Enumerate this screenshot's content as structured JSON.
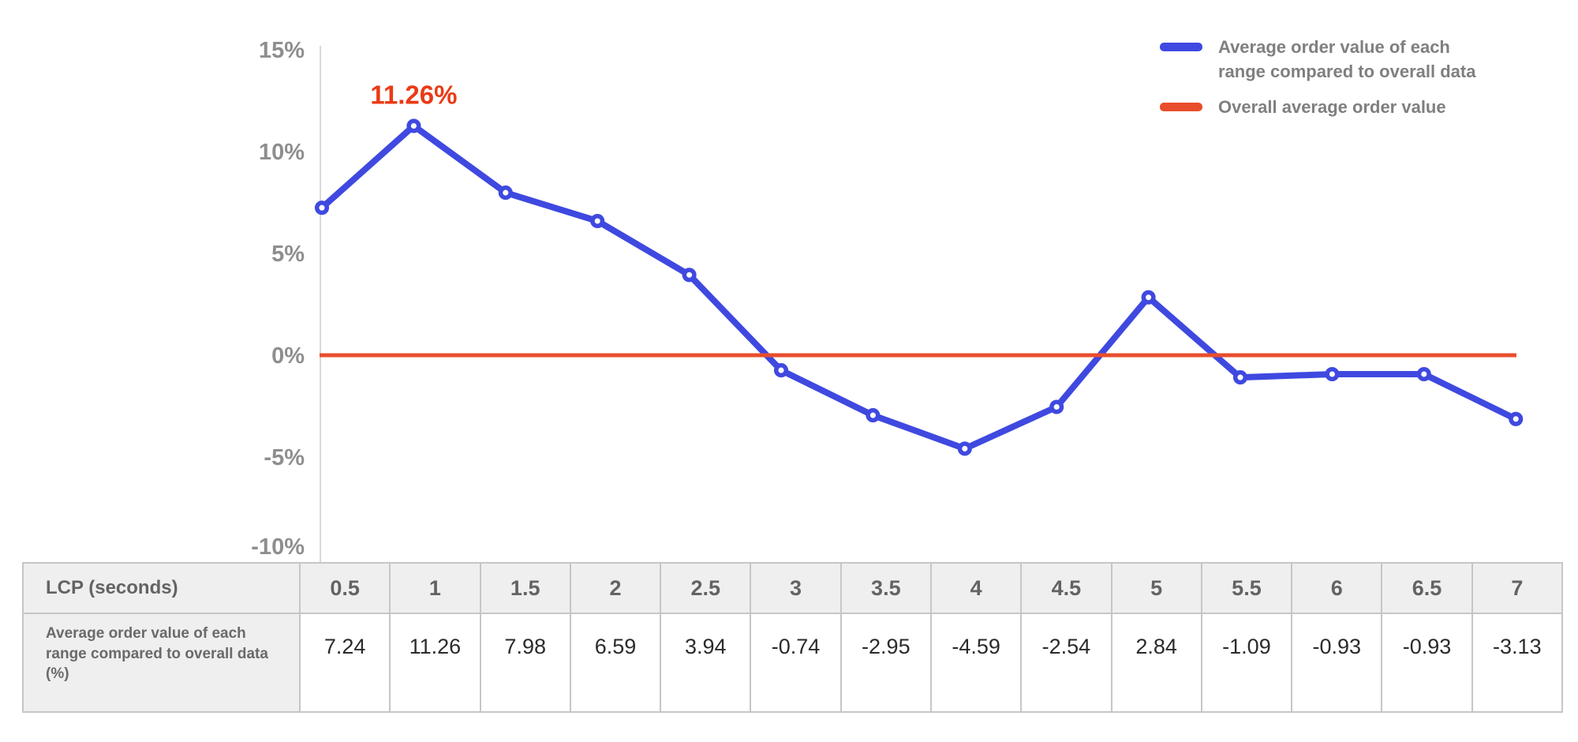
{
  "chart_data": {
    "type": "line",
    "title": "",
    "xlabel": "LCP (seconds)",
    "ylabel": "",
    "x_categories": [
      "0.5",
      "1",
      "1.5",
      "2",
      "2.5",
      "3",
      "3.5",
      "4",
      "4.5",
      "5",
      "5.5",
      "6",
      "6.5",
      "7"
    ],
    "yticks": [
      "15%",
      "10%",
      "5%",
      "0%",
      "-5%",
      "-10%"
    ],
    "ytick_values": [
      15,
      10,
      5,
      0,
      -5,
      -10
    ],
    "ylim": [
      -10.5,
      15.3
    ],
    "grid": false,
    "legend_position": "top-right",
    "series": [
      {
        "name": "Average order value of each range compared to overall data",
        "type": "line",
        "color": "#3f49e0",
        "values": [
          7.24,
          11.26,
          7.98,
          6.59,
          3.94,
          -0.74,
          -2.95,
          -4.59,
          -2.54,
          2.84,
          -1.09,
          -0.93,
          -0.93,
          -3.13
        ]
      },
      {
        "name": "Overall average order value",
        "type": "reference-line",
        "color": "#e94e2c",
        "value": 0
      }
    ],
    "annotation": {
      "text": "11.26%",
      "x_index": 1,
      "y": 11.26,
      "color": "#ea3a15"
    }
  },
  "legend": {
    "items": [
      {
        "label": "Average order value of each\nrange compared to overall data",
        "color": "#3f49e0"
      },
      {
        "label": "Overall average order value",
        "color": "#e94e2c"
      }
    ]
  },
  "table": {
    "corner_label": "LCP (seconds)",
    "row_label": "Average order value of each range compared to overall data (%)",
    "column_headers": [
      "0.5",
      "1",
      "1.5",
      "2",
      "2.5",
      "3",
      "3.5",
      "4",
      "4.5",
      "5",
      "5.5",
      "6",
      "6.5",
      "7"
    ],
    "row_values": [
      "7.24",
      "11.26",
      "7.98",
      "6.59",
      "3.94",
      "-0.74",
      "-2.95",
      "-4.59",
      "-2.54",
      "2.84",
      "-1.09",
      "-0.93",
      "-0.93",
      "-3.13"
    ]
  },
  "colors": {
    "axis_line": "#d9d9d9",
    "tick_text": "#8e8e8e",
    "legend_text": "#7f7f7f",
    "table_border": "#c6c6c6",
    "table_header_bg": "#efefef",
    "table_header_text": "#636363",
    "table_value_text": "#2b2b2b"
  }
}
